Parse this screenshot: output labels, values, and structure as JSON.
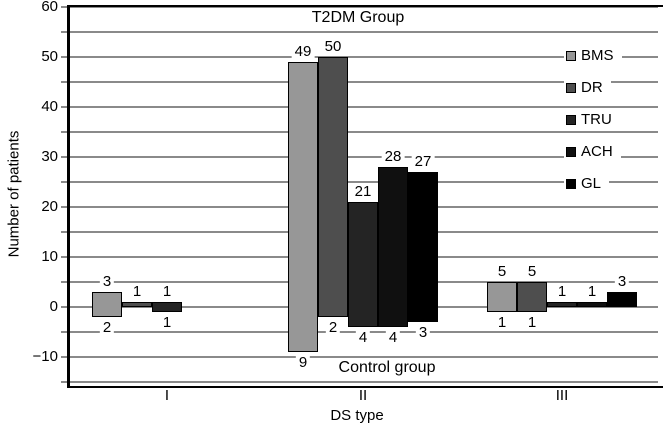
{
  "chart_data": {
    "type": "bar",
    "title": "T2DM Group",
    "bottom_group_label": "Control group",
    "xlabel": "DS type",
    "ylabel": "Number of patients",
    "categories": [
      "I",
      "II",
      "III"
    ],
    "series": [
      {
        "name": "BMS",
        "color": "#979797",
        "t2dm": [
          3,
          49,
          5
        ],
        "control": [
          2,
          9,
          1
        ]
      },
      {
        "name": "DR",
        "color": "#4e4e4e",
        "t2dm": [
          1,
          50,
          5
        ],
        "control": [
          0,
          2,
          1
        ]
      },
      {
        "name": "TRU",
        "color": "#242424",
        "t2dm": [
          1,
          21,
          1
        ],
        "control": [
          1,
          4,
          0
        ]
      },
      {
        "name": "ACH",
        "color": "#101010",
        "t2dm": [
          0,
          28,
          1
        ],
        "control": [
          0,
          4,
          0
        ]
      },
      {
        "name": "GL",
        "color": "#000000",
        "t2dm": [
          0,
          27,
          3
        ],
        "control": [
          0,
          3,
          0
        ]
      }
    ],
    "ylim": [
      -15,
      60
    ],
    "yticks": [
      60,
      50,
      40,
      30,
      20,
      10,
      0,
      -10
    ],
    "grid_interval": 5,
    "grid_color": "#8a8a8a",
    "legend_position": "right-inside",
    "value_labels": "absolute",
    "note": "positive bars = T2DM group, negative bars = Control group"
  }
}
